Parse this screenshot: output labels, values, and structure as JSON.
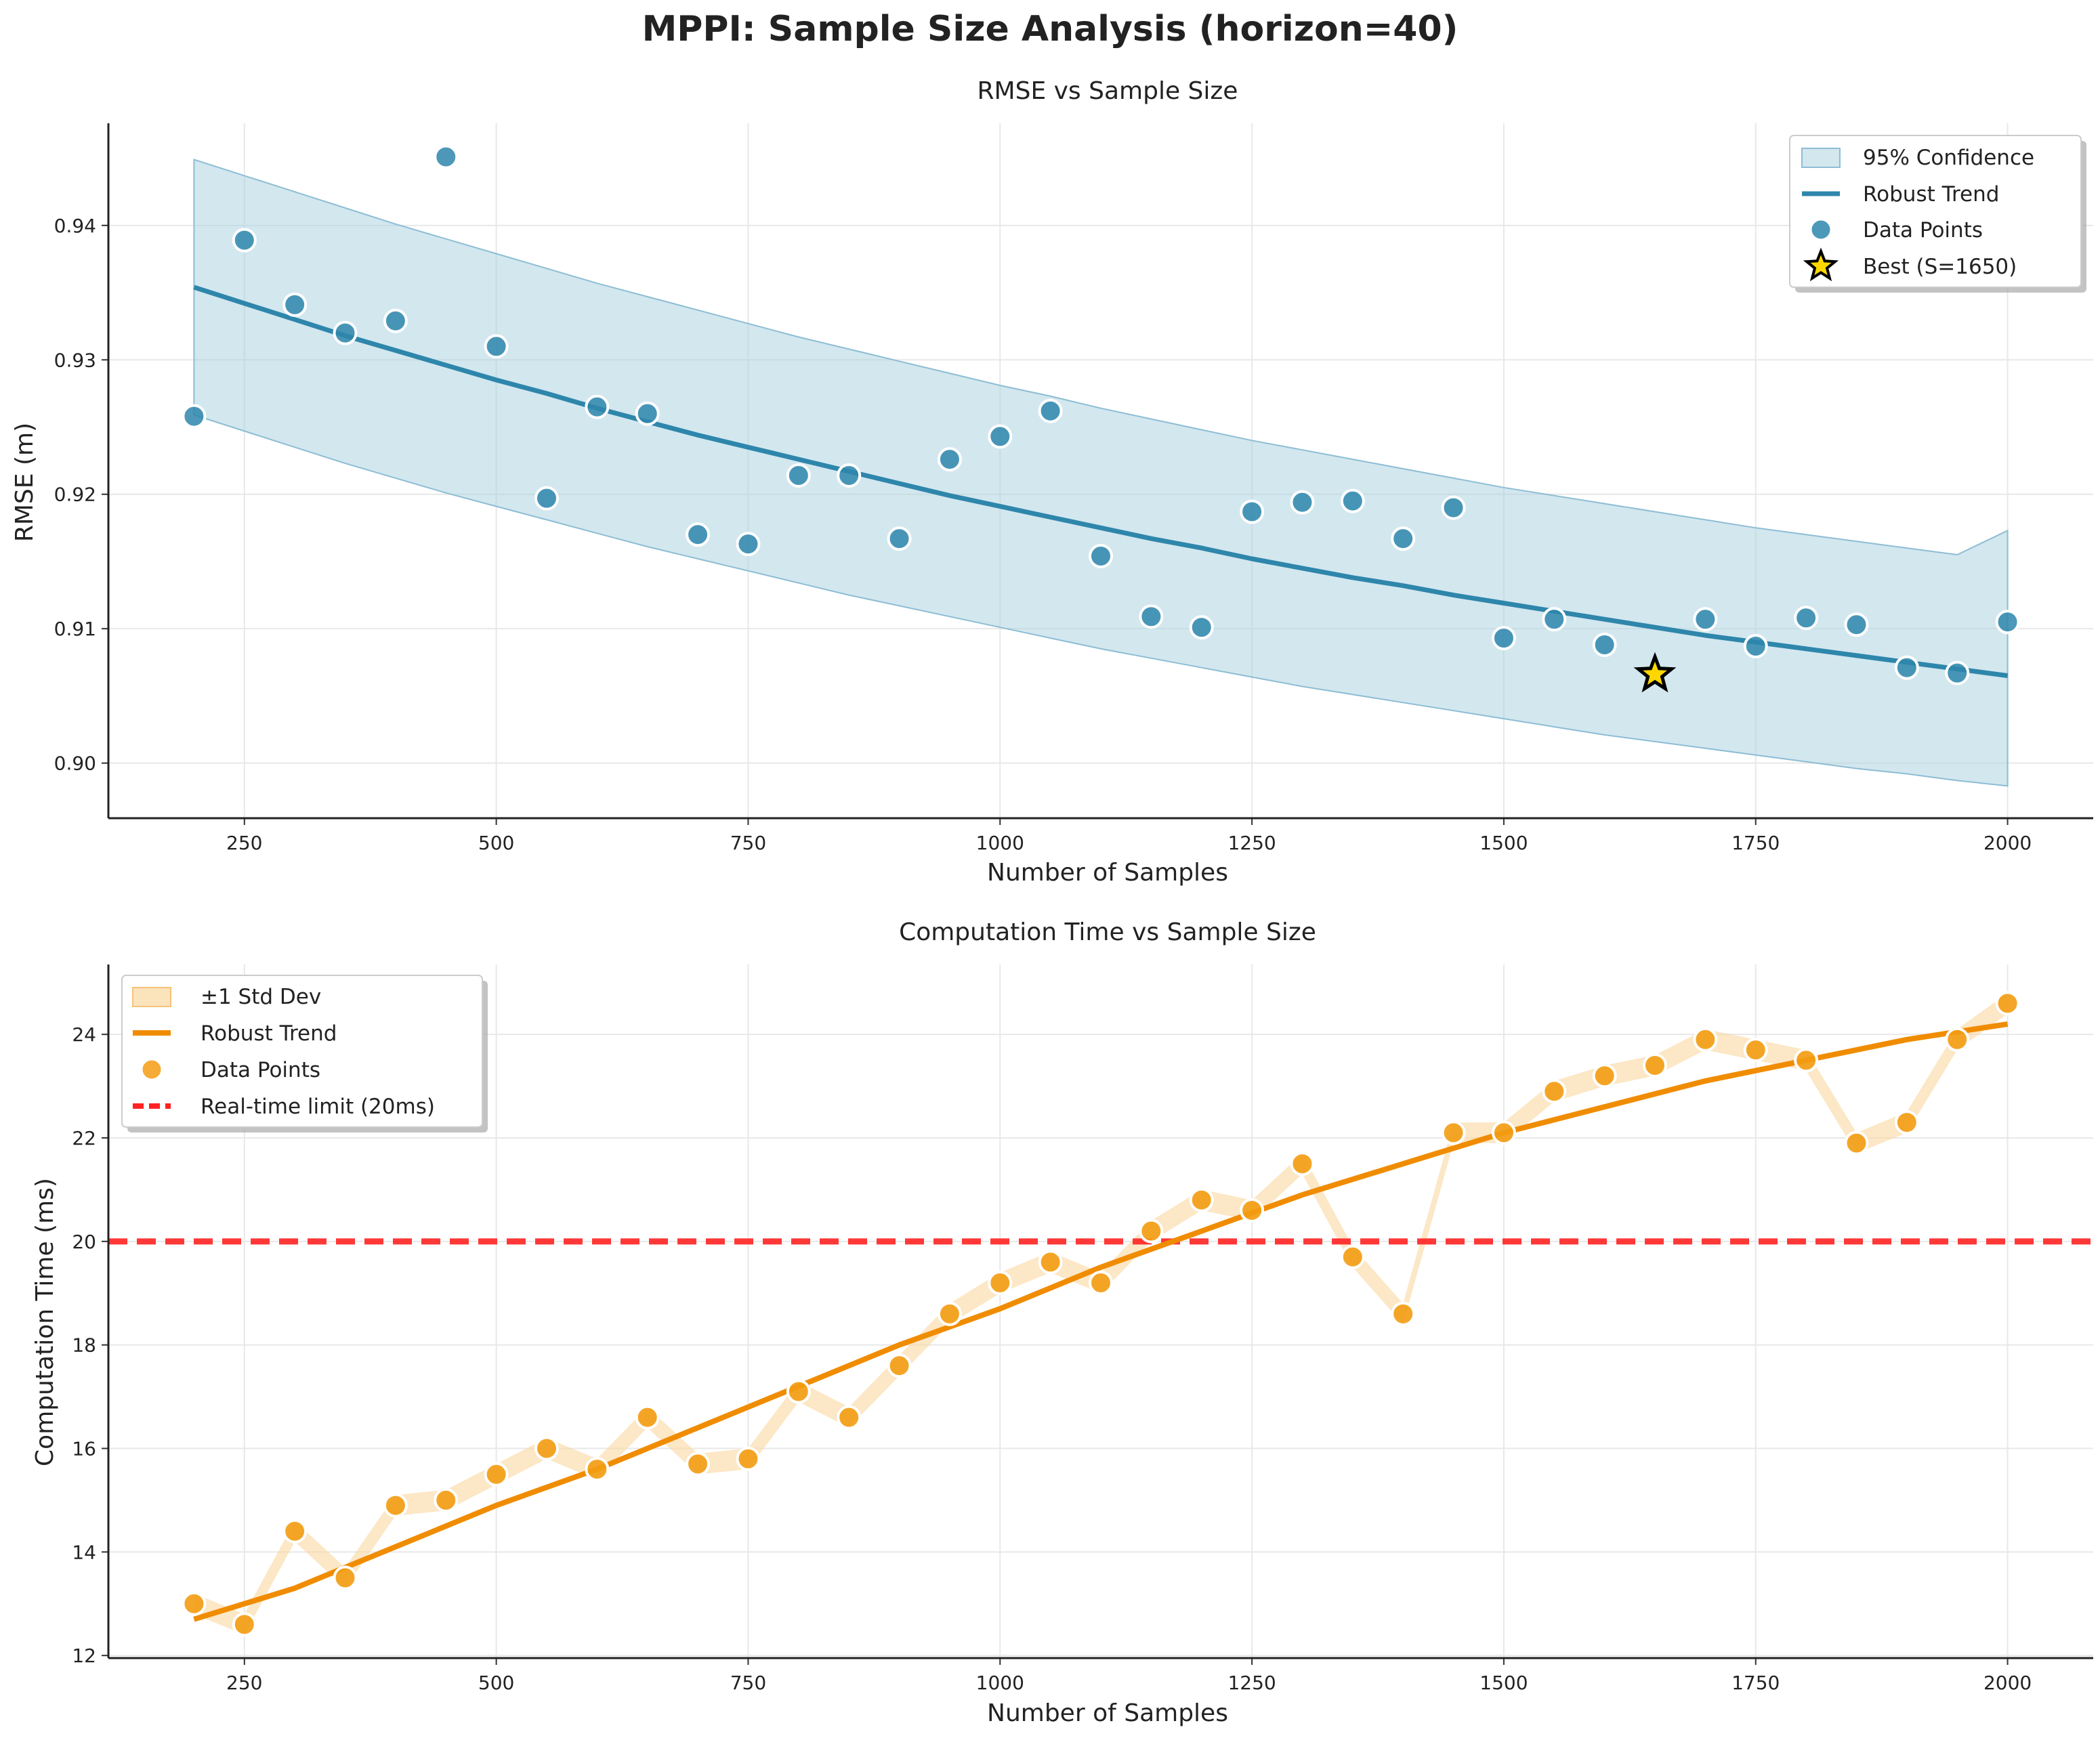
{
  "figure": {
    "title": "MPPI: Sample Size Analysis (horizon=40)"
  },
  "chart_data": [
    {
      "type": "scatter",
      "title": "RMSE vs Sample Size",
      "xlabel": "Number of Samples",
      "ylabel": "RMSE (m)",
      "xlim": [
        115,
        2085
      ],
      "ylim": [
        0.8959,
        0.9476
      ],
      "xticks": [
        250,
        500,
        750,
        1000,
        1250,
        1500,
        1750,
        2000
      ],
      "yticks": [
        0.9,
        0.91,
        0.92,
        0.93,
        0.94
      ],
      "ytick_labels": [
        "0.90",
        "0.91",
        "0.92",
        "0.93",
        "0.94"
      ],
      "grid": true,
      "legend_position": "top-right",
      "colors": {
        "points": "#2e86ab",
        "trend": "#2e86ab",
        "band": "#a8cfe0",
        "best_fill": "#ffd700",
        "best_edge": "#000000"
      },
      "x": [
        200,
        250,
        300,
        350,
        400,
        450,
        500,
        550,
        600,
        650,
        700,
        750,
        800,
        850,
        900,
        950,
        1000,
        1050,
        1100,
        1150,
        1200,
        1250,
        1300,
        1350,
        1400,
        1450,
        1500,
        1550,
        1600,
        1650,
        1700,
        1750,
        1800,
        1850,
        1900,
        1950,
        2000
      ],
      "series": [
        {
          "name": "Data Points",
          "kind": "scatter",
          "values": [
            0.9258,
            0.9389,
            0.9341,
            0.932,
            0.9329,
            0.9451,
            0.931,
            0.9197,
            0.9265,
            0.926,
            0.917,
            0.9163,
            0.9214,
            0.9214,
            0.9167,
            0.9226,
            0.9243,
            0.9262,
            0.9154,
            0.9109,
            0.9101,
            0.9187,
            0.9194,
            0.9195,
            0.9167,
            0.919,
            0.9093,
            0.9107,
            0.9088,
            0.9066,
            0.9107,
            0.9087,
            0.9108,
            0.9103,
            0.9071,
            0.9067,
            0.9105
          ]
        },
        {
          "name": "Robust Trend",
          "kind": "line",
          "values": [
            0.9354,
            0.9342,
            0.933,
            0.9318,
            0.9307,
            0.9296,
            0.9285,
            0.9275,
            0.9264,
            0.9254,
            0.9244,
            0.9235,
            0.9226,
            0.9217,
            0.9208,
            0.9199,
            0.9191,
            0.9183,
            0.9175,
            0.9167,
            0.916,
            0.9152,
            0.9145,
            0.9138,
            0.9132,
            0.9125,
            0.9119,
            0.9113,
            0.9107,
            0.9101,
            0.9095,
            0.909,
            0.9085,
            0.908,
            0.9075,
            0.907,
            0.9065
          ]
        },
        {
          "name": "95% Confidence",
          "kind": "band",
          "upper": [
            0.9449,
            0.9437,
            0.9425,
            0.9413,
            0.9401,
            0.939,
            0.9379,
            0.9368,
            0.9357,
            0.9347,
            0.9337,
            0.9327,
            0.9317,
            0.9308,
            0.9299,
            0.929,
            0.9281,
            0.9273,
            0.9264,
            0.9256,
            0.9248,
            0.924,
            0.9233,
            0.9226,
            0.9219,
            0.9212,
            0.9205,
            0.9199,
            0.9193,
            0.9187,
            0.9181,
            0.9175,
            0.917,
            0.9165,
            0.916,
            0.9155,
            0.9173
          ],
          "lower": [
            0.9259,
            0.9247,
            0.9235,
            0.9223,
            0.9212,
            0.9201,
            0.9191,
            0.9181,
            0.9171,
            0.9161,
            0.9152,
            0.9143,
            0.9134,
            0.9125,
            0.9117,
            0.9109,
            0.9101,
            0.9093,
            0.9085,
            0.9078,
            0.9071,
            0.9064,
            0.9057,
            0.9051,
            0.9045,
            0.9039,
            0.9033,
            0.9027,
            0.9021,
            0.9016,
            0.9011,
            0.9006,
            0.9001,
            0.8996,
            0.8992,
            0.8987,
            0.8983
          ]
        }
      ],
      "best": {
        "x": 1650,
        "y": 0.9066
      },
      "legend": [
        "95% Confidence",
        "Robust Trend",
        "Data Points",
        "Best (S=1650)"
      ]
    },
    {
      "type": "line",
      "title": "Computation Time vs Sample Size",
      "xlabel": "Number of Samples",
      "ylabel": "Computation Time (ms)",
      "xlim": [
        115,
        2085
      ],
      "ylim": [
        11.95,
        25.35
      ],
      "xticks": [
        250,
        500,
        750,
        1000,
        1250,
        1500,
        1750,
        2000
      ],
      "yticks": [
        12,
        14,
        16,
        18,
        20,
        22,
        24
      ],
      "ytick_labels": [
        "12",
        "14",
        "16",
        "18",
        "20",
        "22",
        "24"
      ],
      "grid": true,
      "legend_position": "top-left",
      "colors": {
        "points": "#f39c12",
        "trend": "#f08c00",
        "band": "#fad7a0",
        "limit": "#ff2222"
      },
      "x": [
        200,
        250,
        300,
        350,
        400,
        450,
        500,
        550,
        600,
        650,
        700,
        750,
        800,
        850,
        900,
        950,
        1000,
        1050,
        1100,
        1150,
        1200,
        1250,
        1300,
        1350,
        1400,
        1450,
        1500,
        1550,
        1600,
        1650,
        1700,
        1750,
        1800,
        1850,
        1900,
        1950,
        2000
      ],
      "series": [
        {
          "name": "Data Points",
          "kind": "scatter",
          "values": [
            13.0,
            12.6,
            14.4,
            13.5,
            14.9,
            15.0,
            15.5,
            16.0,
            15.6,
            16.6,
            15.7,
            15.8,
            17.1,
            16.6,
            17.6,
            18.6,
            19.2,
            19.6,
            19.2,
            20.2,
            20.8,
            20.6,
            21.5,
            19.7,
            18.6,
            22.1,
            22.1,
            22.9,
            23.2,
            23.4,
            23.9,
            23.7,
            23.5,
            21.9,
            22.3,
            23.9,
            24.6
          ]
        },
        {
          "name": "Robust Trend",
          "kind": "line",
          "x": [
            200,
            300,
            400,
            500,
            600,
            700,
            800,
            900,
            1000,
            1100,
            1200,
            1300,
            1400,
            1500,
            1600,
            1700,
            1800,
            1900,
            2000
          ],
          "values": [
            12.7,
            13.3,
            14.1,
            14.9,
            15.6,
            16.4,
            17.2,
            18.0,
            18.7,
            19.5,
            20.2,
            20.9,
            21.5,
            22.1,
            22.6,
            23.1,
            23.5,
            23.9,
            24.2
          ]
        }
      ],
      "band": {
        "name": "±1 Std Dev",
        "half_width": 0.2
      },
      "reference_line": {
        "name": "Real-time limit (20ms)",
        "y": 20
      },
      "legend": [
        "±1 Std Dev",
        "Robust Trend",
        "Data Points",
        "Real-time limit (20ms)"
      ]
    }
  ]
}
